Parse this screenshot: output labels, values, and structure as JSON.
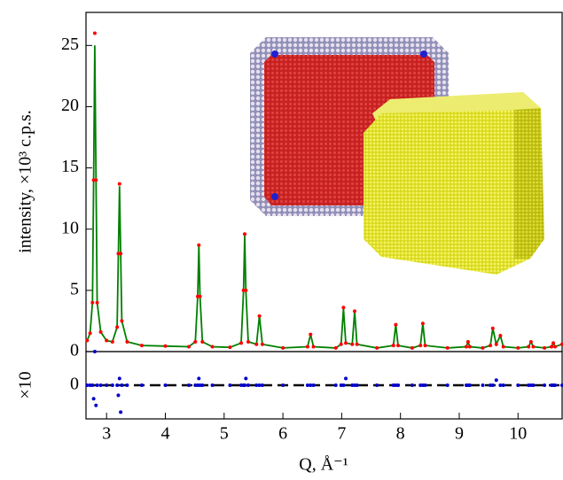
{
  "chart_data": [
    {
      "type": "line",
      "ylabel": "intensity, ×10³ c.p.s.",
      "x": [
        2.67,
        2.72,
        2.76,
        2.78,
        2.8,
        2.82,
        2.84,
        2.9,
        3.0,
        3.1,
        3.18,
        3.2,
        3.22,
        3.24,
        3.26,
        3.35,
        3.6,
        4.0,
        4.4,
        4.51,
        4.55,
        4.57,
        4.59,
        4.63,
        4.8,
        5.1,
        5.29,
        5.33,
        5.35,
        5.37,
        5.41,
        5.55,
        5.6,
        5.65,
        6.0,
        6.42,
        6.47,
        6.52,
        6.9,
        6.99,
        7.03,
        7.07,
        7.18,
        7.22,
        7.26,
        7.6,
        7.88,
        7.92,
        7.96,
        8.2,
        8.34,
        8.38,
        8.42,
        8.8,
        9.12,
        9.15,
        9.18,
        9.4,
        9.53,
        9.57,
        9.63,
        9.7,
        9.75,
        10.0,
        10.18,
        10.22,
        10.26,
        10.45,
        10.57,
        10.6,
        10.63,
        10.75
      ],
      "series": [
        {
          "style": "line",
          "color": "#008000",
          "values": [
            0.9,
            1.5,
            4,
            14,
            25,
            14,
            4,
            1.6,
            0.9,
            0.8,
            2,
            8,
            13.5,
            8,
            2.5,
            0.8,
            0.5,
            0.45,
            0.4,
            0.8,
            4.5,
            8.7,
            4.5,
            0.8,
            0.4,
            0.35,
            0.7,
            5,
            9.5,
            5,
            0.8,
            0.6,
            2.9,
            0.6,
            0.3,
            0.4,
            1.4,
            0.4,
            0.3,
            0.6,
            3.5,
            0.7,
            0.6,
            3.3,
            0.6,
            0.3,
            0.5,
            2.2,
            0.5,
            0.3,
            0.5,
            2.3,
            0.5,
            0.3,
            0.4,
            0.8,
            0.4,
            0.3,
            0.5,
            1.9,
            0.6,
            1.3,
            0.4,
            0.3,
            0.4,
            0.8,
            0.4,
            0.3,
            0.4,
            0.7,
            0.4,
            0.6
          ]
        },
        {
          "style": "points",
          "color": "#ff0000",
          "values": [
            0.9,
            1.5,
            4,
            14,
            26,
            14,
            4,
            1.6,
            0.9,
            0.8,
            2,
            8,
            13.7,
            8,
            2.5,
            0.8,
            0.5,
            0.45,
            0.4,
            0.8,
            4.5,
            8.7,
            4.5,
            0.8,
            0.4,
            0.35,
            0.7,
            5,
            9.6,
            5,
            0.8,
            0.6,
            2.9,
            0.6,
            0.3,
            0.4,
            1.4,
            0.4,
            0.3,
            0.6,
            3.6,
            0.7,
            0.6,
            3.3,
            0.6,
            0.3,
            0.5,
            2.2,
            0.5,
            0.3,
            0.5,
            2.3,
            0.5,
            0.3,
            0.4,
            0.8,
            0.4,
            0.3,
            0.5,
            1.9,
            0.6,
            1.3,
            0.4,
            0.3,
            0.4,
            0.8,
            0.4,
            0.3,
            0.4,
            0.7,
            0.4,
            0.6
          ]
        }
      ],
      "xlim": [
        2.65,
        10.75
      ],
      "ylim": [
        0,
        27.7
      ],
      "yticks": [
        0,
        5,
        10,
        15,
        20,
        25
      ]
    },
    {
      "type": "line",
      "ylabel": "×10",
      "xlabel": "Q, Å⁻¹",
      "x": [
        2.67,
        2.72,
        2.76,
        2.78,
        2.8,
        2.82,
        2.84,
        2.9,
        3.0,
        3.1,
        3.18,
        3.2,
        3.22,
        3.24,
        3.26,
        3.35,
        3.6,
        4.0,
        4.4,
        4.51,
        4.55,
        4.57,
        4.59,
        4.63,
        4.8,
        5.1,
        5.29,
        5.33,
        5.35,
        5.37,
        5.41,
        5.55,
        5.6,
        5.65,
        6.0,
        6.42,
        6.47,
        6.52,
        6.9,
        6.99,
        7.03,
        7.07,
        7.18,
        7.22,
        7.26,
        7.6,
        7.88,
        7.92,
        7.96,
        8.2,
        8.34,
        8.38,
        8.42,
        8.8,
        9.12,
        9.15,
        9.18,
        9.4,
        9.53,
        9.57,
        9.63,
        9.7,
        9.75,
        10.0,
        10.18,
        10.22,
        10.26,
        10.45,
        10.57,
        10.6,
        10.63,
        10.75
      ],
      "series": [
        {
          "style": "points",
          "color": "#0000cc",
          "values": [
            0,
            0,
            0,
            -0.4,
            1.0,
            -0.6,
            0,
            0,
            0,
            0,
            0,
            -0.3,
            0.2,
            -0.8,
            0,
            0,
            0,
            0,
            0,
            0,
            0,
            0.2,
            0,
            0,
            0,
            0,
            0,
            0,
            0,
            0.2,
            0,
            0,
            0,
            0,
            0,
            0,
            0,
            0,
            0,
            0,
            0,
            0.2,
            0,
            0,
            0,
            0,
            0,
            0,
            0,
            0,
            0,
            0,
            0,
            0,
            0,
            0,
            0,
            0,
            0,
            0,
            0.15,
            0,
            0,
            0,
            0,
            0,
            0,
            0,
            0,
            0,
            0,
            0
          ]
        }
      ],
      "xlim": [
        2.65,
        10.75
      ],
      "ylim": [
        -1,
        1
      ],
      "yticks": [
        0
      ],
      "xticks": [
        3,
        4,
        5,
        6,
        7,
        8,
        9,
        10
      ]
    }
  ]
}
